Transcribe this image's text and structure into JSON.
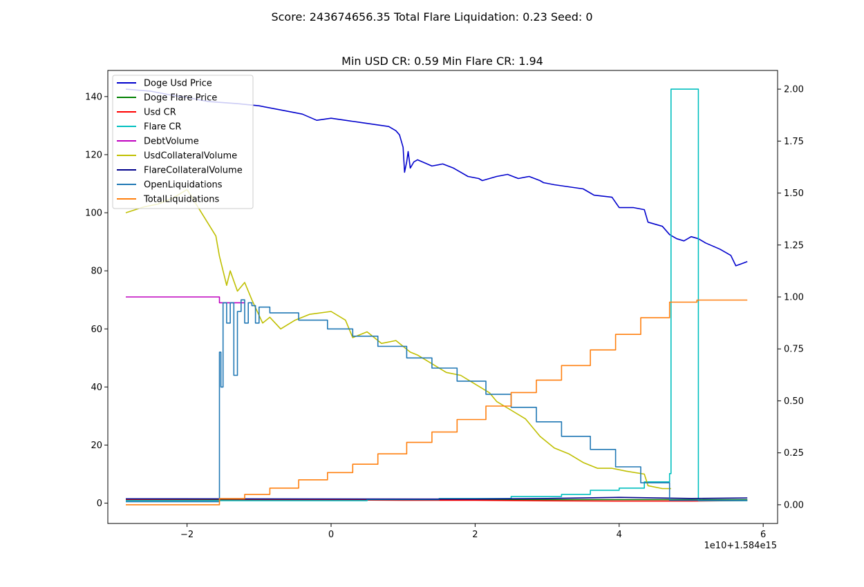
{
  "suptitle": "Score: 243674656.35 Total Flare Liquidation: 0.23 Seed: 0",
  "chart_data": {
    "type": "line",
    "title": "Min USD CR: 0.59 Min Flare CR: 1.94",
    "xlabel": "",
    "ylabel": "",
    "x_offset_text": "1e10+1.584e15",
    "xlim": [
      -3.1,
      6.2
    ],
    "ylim_left": [
      -7,
      149
    ],
    "ylim_right": [
      -0.09,
      2.09
    ],
    "x_ticks": [
      -2,
      0,
      2,
      4,
      6
    ],
    "y_ticks_left": [
      0,
      20,
      40,
      60,
      80,
      100,
      120,
      140
    ],
    "y_ticks_right": [
      0.0,
      0.25,
      0.5,
      0.75,
      1.0,
      1.25,
      1.5,
      1.75,
      2.0
    ],
    "y_tick_labels_right": [
      "0.00",
      "0.25",
      "0.50",
      "0.75",
      "1.00",
      "1.25",
      "1.50",
      "1.75",
      "2.00"
    ],
    "grid": false,
    "legend_placement": "upper-left",
    "series": [
      {
        "name": "Doge Usd Price",
        "color": "#0000cc",
        "axis": "right",
        "step": false,
        "x": [
          -2.85,
          -2.5,
          -2.2,
          -2.0,
          -1.7,
          -1.3,
          -1.0,
          -0.7,
          -0.4,
          -0.2,
          0.0,
          0.2,
          0.4,
          0.6,
          0.8,
          0.9,
          0.95,
          1.0,
          1.02,
          1.05,
          1.07,
          1.1,
          1.15,
          1.2,
          1.4,
          1.55,
          1.7,
          1.9,
          2.05,
          2.1,
          2.3,
          2.45,
          2.6,
          2.75,
          2.9,
          2.95,
          3.1,
          3.3,
          3.5,
          3.6,
          3.65,
          3.9,
          4.0,
          4.2,
          4.35,
          4.4,
          4.6,
          4.7,
          4.8,
          4.9,
          5.0,
          5.1,
          5.2,
          5.4,
          5.55,
          5.62,
          5.7,
          5.78
        ],
        "y": [
          2.0,
          1.99,
          1.97,
          1.96,
          1.94,
          1.93,
          1.92,
          1.9,
          1.88,
          1.85,
          1.86,
          1.85,
          1.84,
          1.83,
          1.82,
          1.8,
          1.78,
          1.72,
          1.6,
          1.65,
          1.7,
          1.62,
          1.65,
          1.66,
          1.63,
          1.64,
          1.62,
          1.58,
          1.57,
          1.56,
          1.58,
          1.59,
          1.57,
          1.58,
          1.56,
          1.55,
          1.54,
          1.53,
          1.52,
          1.5,
          1.49,
          1.48,
          1.43,
          1.43,
          1.42,
          1.36,
          1.34,
          1.3,
          1.28,
          1.27,
          1.29,
          1.28,
          1.26,
          1.23,
          1.2,
          1.15,
          1.16,
          1.17
        ]
      },
      {
        "name": "Doge Flare Price",
        "color": "#008000",
        "axis": "left",
        "step": false,
        "x": [
          -2.85,
          5.78
        ],
        "y": [
          1.2,
          1.2
        ]
      },
      {
        "name": "Usd CR",
        "color": "#ff0000",
        "axis": "left",
        "step": false,
        "x": [
          -2.85,
          -1.5,
          0.0,
          1.0,
          2.0,
          3.0,
          4.0,
          5.0,
          5.78
        ],
        "y": [
          1.1,
          1.0,
          1.1,
          1.0,
          1.0,
          0.8,
          0.7,
          0.7,
          0.9
        ]
      },
      {
        "name": "Flare CR",
        "color": "#00bfbf",
        "axis": "right",
        "step": true,
        "x": [
          -2.85,
          0.5,
          1.5,
          2.5,
          3.2,
          3.6,
          4.0,
          4.35,
          4.7,
          4.72,
          5.08,
          5.1,
          5.78
        ],
        "y": [
          0.02,
          0.025,
          0.03,
          0.04,
          0.05,
          0.07,
          0.08,
          0.11,
          0.15,
          2.0,
          2.0,
          0.02,
          0.02
        ]
      },
      {
        "name": "DebtVolume",
        "color": "#bf00bf",
        "axis": "left",
        "step": false,
        "x": [
          -2.85,
          -1.55,
          -1.55,
          -1.2
        ],
        "y": [
          71,
          71,
          69,
          69
        ]
      },
      {
        "name": "UsdCollateralVolume",
        "color": "#bfbf00",
        "axis": "left",
        "step": false,
        "x": [
          -2.85,
          -2.6,
          -2.4,
          -2.2,
          -2.0,
          -1.8,
          -1.6,
          -1.55,
          -1.45,
          -1.4,
          -1.3,
          -1.2,
          -1.1,
          -0.95,
          -0.85,
          -0.7,
          -0.5,
          -0.3,
          0.0,
          0.2,
          0.3,
          0.5,
          0.7,
          0.9,
          1.1,
          1.2,
          1.4,
          1.6,
          1.8,
          2.0,
          2.2,
          2.3,
          2.5,
          2.7,
          2.9,
          3.1,
          3.3,
          3.5,
          3.7,
          3.9,
          4.1,
          4.35,
          4.4,
          4.6,
          4.72
        ],
        "y": [
          100,
          102,
          103,
          105,
          108,
          100,
          92,
          85,
          75,
          80,
          73,
          76,
          70,
          62,
          64,
          60,
          63,
          65,
          66,
          63,
          57,
          59,
          55,
          56,
          52,
          51,
          48,
          45,
          44,
          41,
          38,
          35,
          32,
          29,
          23,
          19,
          17,
          14,
          12,
          12,
          11,
          10,
          6,
          5,
          5
        ]
      },
      {
        "name": "FlareCollateralVolume",
        "color": "#00008b",
        "axis": "left",
        "step": false,
        "x": [
          -2.85,
          2.0,
          3.0,
          4.0,
          5.0,
          5.78
        ],
        "y": [
          1.5,
          1.4,
          1.6,
          2.0,
          1.6,
          1.8
        ]
      },
      {
        "name": "OpenLiquidations",
        "color": "#1f77b4",
        "axis": "left",
        "step": true,
        "x": [
          -2.85,
          -1.55,
          -1.55,
          -1.53,
          -1.5,
          -1.45,
          -1.4,
          -1.35,
          -1.3,
          -1.25,
          -1.2,
          -1.15,
          -1.1,
          -1.05,
          -1.0,
          -0.85,
          -0.45,
          -0.05,
          0.3,
          0.65,
          1.05,
          1.4,
          1.75,
          2.15,
          2.5,
          2.85,
          3.2,
          3.6,
          3.95,
          4.3,
          4.7,
          5.08,
          5.78
        ],
        "y": [
          0.5,
          0.5,
          52,
          40,
          69,
          62,
          69,
          44,
          66,
          70,
          62,
          69,
          68,
          62,
          67.5,
          65.5,
          63,
          60,
          57.5,
          54,
          50,
          46.5,
          42,
          37.5,
          33,
          28,
          23,
          18.5,
          12.5,
          7,
          1,
          1,
          1
        ]
      },
      {
        "name": "TotalLiquidations",
        "color": "#ff7f0e",
        "axis": "right",
        "step": true,
        "x": [
          -2.85,
          -1.55,
          -1.2,
          -0.85,
          -0.45,
          -0.05,
          0.3,
          0.65,
          1.05,
          1.4,
          1.75,
          2.15,
          2.5,
          2.85,
          3.2,
          3.6,
          3.95,
          4.3,
          4.7,
          5.08,
          5.78
        ],
        "y": [
          0.0,
          0.03,
          0.05,
          0.08,
          0.12,
          0.155,
          0.195,
          0.245,
          0.3,
          0.35,
          0.41,
          0.475,
          0.54,
          0.6,
          0.67,
          0.745,
          0.82,
          0.9,
          0.975,
          0.985,
          0.985
        ]
      }
    ]
  }
}
